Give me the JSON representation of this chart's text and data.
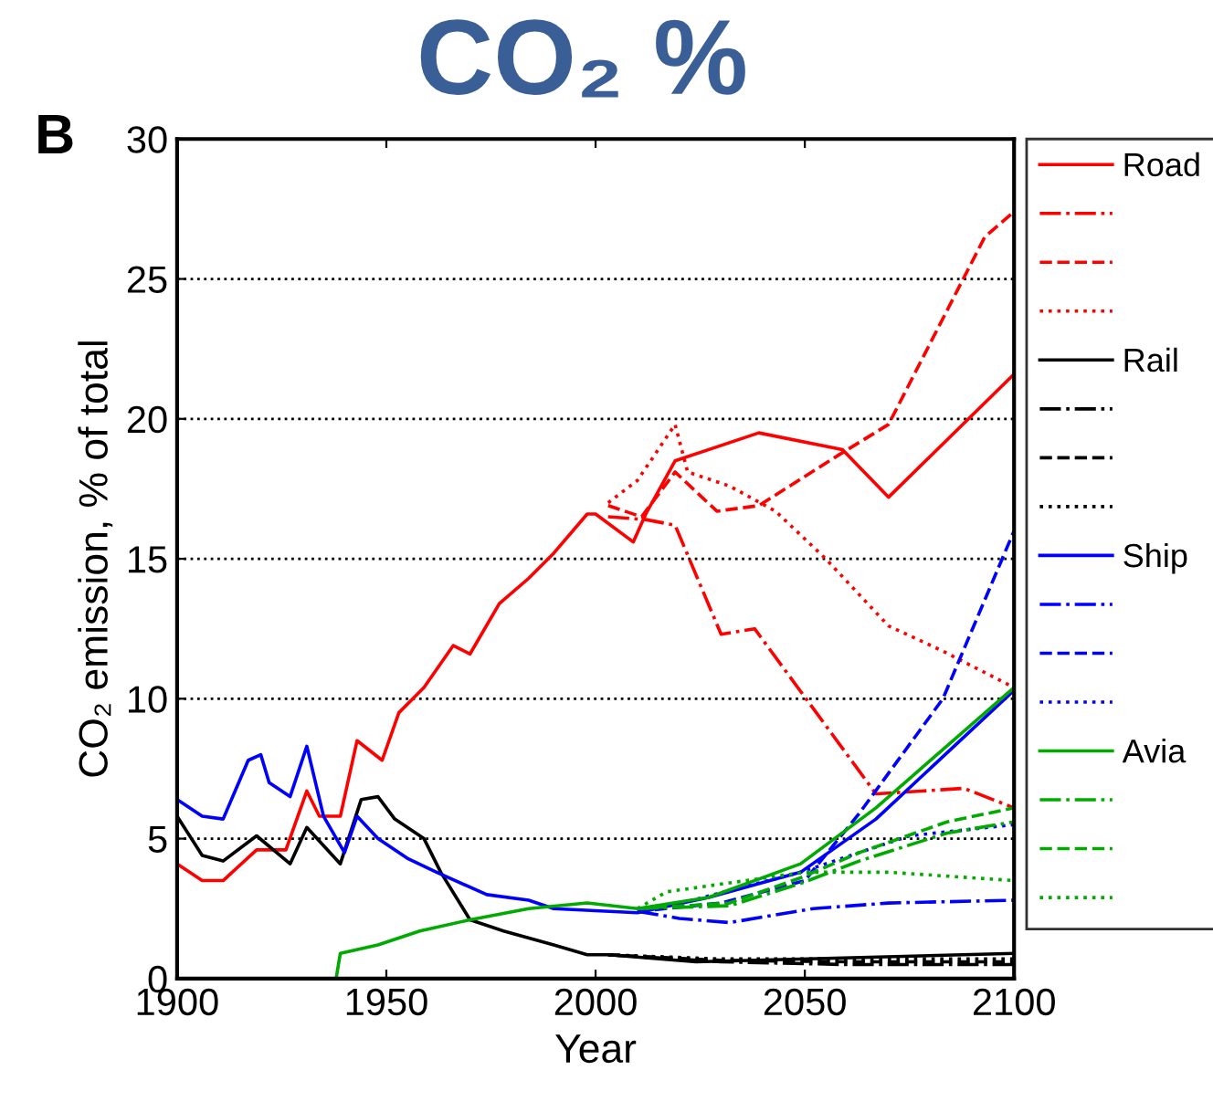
{
  "chart_data": {
    "type": "line",
    "title": "CO₂ %",
    "xlabel": "Year",
    "ylabel": "CO₂ emission, % of total",
    "annotations": [
      "B"
    ],
    "xlim": [
      1900,
      2100
    ],
    "xticks": [
      1900,
      1950,
      2000,
      2050,
      2100
    ],
    "ylim": [
      0,
      30
    ],
    "yticks": [
      0,
      5,
      10,
      15,
      20,
      25,
      30
    ],
    "grid": "y",
    "legend": "right",
    "marker": "none",
    "series": [
      {
        "name": "Road",
        "color": "#ff0000",
        "line_style": "solid",
        "x": [
          1900,
          1906,
          1911,
          1919,
          1926,
          1931,
          1934,
          1939,
          1943,
          1949,
          1953,
          1959,
          1966,
          1970,
          1977,
          1984,
          1990,
          1998,
          2000,
          2009,
          2012,
          2019,
          2039,
          2059,
          2070,
          2100
        ],
        "values": [
          4.1,
          3.5,
          3.5,
          4.6,
          4.6,
          6.7,
          5.8,
          5.8,
          8.5,
          7.8,
          9.5,
          10.4,
          11.9,
          11.6,
          13.4,
          14.3,
          15.2,
          16.6,
          16.6,
          15.6,
          16.6,
          18.5,
          19.5,
          18.9,
          17.2,
          21.6
        ]
      },
      {
        "color": "#ff0000",
        "line_style": "dashdot",
        "x": [
          2003,
          2012,
          2019,
          2030,
          2038,
          2067,
          2078,
          2088,
          2100
        ],
        "values": [
          16.5,
          16.4,
          16.2,
          12.3,
          12.5,
          6.6,
          6.7,
          6.8,
          6.1
        ]
      },
      {
        "color": "#ff0000",
        "line_style": "dashed",
        "x": [
          2003,
          2011,
          2019,
          2029,
          2039,
          2058,
          2070,
          2093,
          2100
        ],
        "values": [
          16.9,
          16.5,
          18.1,
          16.7,
          16.9,
          18.7,
          19.8,
          26.5,
          27.4
        ]
      },
      {
        "color": "#ff0000",
        "line_style": "dotted",
        "x": [
          2003,
          2010,
          2019,
          2022,
          2032,
          2043,
          2055,
          2070,
          2083,
          2100
        ],
        "values": [
          17.0,
          17.8,
          19.8,
          18.1,
          17.6,
          16.7,
          15.0,
          12.6,
          11.7,
          10.4
        ]
      },
      {
        "name": "Rail",
        "color": "#000000",
        "line_style": "solid",
        "x": [
          1900,
          1906,
          1911,
          1919,
          1927,
          1931,
          1939,
          1944,
          1948,
          1952,
          1959,
          1963,
          1970,
          1978,
          1990,
          1998,
          2003,
          2024,
          2100
        ],
        "values": [
          5.8,
          4.4,
          4.2,
          5.1,
          4.1,
          5.4,
          4.1,
          6.4,
          6.5,
          5.7,
          5.0,
          3.8,
          2.1,
          1.7,
          1.2,
          0.85,
          0.85,
          0.6,
          0.9
        ]
      },
      {
        "color": "#000000",
        "line_style": "dashdot",
        "x": [
          2003,
          2030,
          2060,
          2100
        ],
        "values": [
          0.85,
          0.6,
          0.5,
          0.5
        ]
      },
      {
        "color": "#000000",
        "line_style": "dashed",
        "x": [
          2003,
          2030,
          2060,
          2100
        ],
        "values": [
          0.85,
          0.65,
          0.6,
          0.6
        ]
      },
      {
        "color": "#000000",
        "line_style": "dotted",
        "x": [
          2003,
          2030,
          2060,
          2100
        ],
        "values": [
          0.85,
          0.7,
          0.7,
          0.7
        ]
      },
      {
        "name": "Ship",
        "color": "#0000ff",
        "line_style": "solid",
        "x": [
          1900,
          1906,
          1911,
          1917,
          1920,
          1922,
          1927,
          1931,
          1935,
          1940,
          1943,
          1948,
          1955,
          1962,
          1974,
          1984,
          1990,
          2010,
          2027,
          2049,
          2067,
          2100
        ],
        "values": [
          6.4,
          5.8,
          5.7,
          7.8,
          8.0,
          7.0,
          6.5,
          8.3,
          5.8,
          4.5,
          5.8,
          5.0,
          4.3,
          3.8,
          3.0,
          2.8,
          2.5,
          2.35,
          2.9,
          3.8,
          5.7,
          10.3
        ]
      },
      {
        "color": "#0000ff",
        "line_style": "dashdot",
        "x": [
          2010,
          2020,
          2032,
          2052,
          2070,
          2100
        ],
        "values": [
          2.4,
          2.15,
          2.0,
          2.5,
          2.7,
          2.8
        ]
      },
      {
        "color": "#0000ff",
        "line_style": "dashed",
        "x": [
          2010,
          2030,
          2050,
          2063,
          2083,
          2100
        ],
        "values": [
          2.4,
          2.7,
          3.5,
          5.9,
          10.0,
          16.0
        ]
      },
      {
        "color": "#0000ff",
        "line_style": "dotted",
        "x": [
          2010,
          2018,
          2049,
          2075,
          2100
        ],
        "values": [
          2.4,
          2.6,
          3.8,
          5.1,
          5.5
        ]
      },
      {
        "name": "Avia",
        "color": "#00aa00",
        "line_style": "solid",
        "x": [
          1900,
          1938,
          1939,
          1948,
          1958,
          1970,
          1984,
          1998,
          2010,
          2027,
          2049,
          2067,
          2100
        ],
        "values": [
          0,
          0,
          0.9,
          1.2,
          1.7,
          2.1,
          2.5,
          2.7,
          2.5,
          2.9,
          4.1,
          6.1,
          10.4
        ]
      },
      {
        "color": "#00aa00",
        "line_style": "dashdot",
        "x": [
          2010,
          2032,
          2049,
          2063,
          2084,
          2100
        ],
        "values": [
          2.5,
          2.6,
          3.4,
          4.2,
          5.2,
          5.6
        ]
      },
      {
        "color": "#00aa00",
        "line_style": "dashed",
        "x": [
          2010,
          2032,
          2049,
          2063,
          2084,
          2100
        ],
        "values": [
          2.5,
          2.7,
          3.6,
          4.5,
          5.6,
          6.1
        ]
      },
      {
        "color": "#00aa00",
        "line_style": "dotted",
        "x": [
          2010,
          2017,
          2050,
          2070,
          2100
        ],
        "values": [
          2.5,
          3.1,
          3.8,
          3.8,
          3.5
        ]
      }
    ]
  }
}
